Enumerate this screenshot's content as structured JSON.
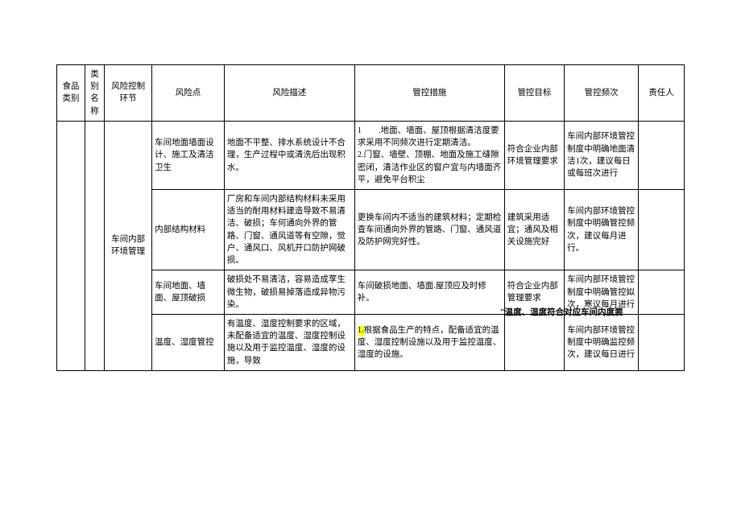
{
  "header": {
    "food_category": "食品类别",
    "category_name": "类别名称",
    "risk_control_link": "风险控制环节",
    "risk_point": "风险点",
    "risk_description": "风险描述",
    "control_measure": "管控措施",
    "control_goal": "管控目标",
    "control_frequency": "管控频次",
    "responsible": "责任人"
  },
  "link_name": "车间内部环境管理",
  "rows": [
    {
      "risk_point": "车间地面墙面设计、施工及清洁卫生",
      "risk_description": "地面不平整、排水系统设计不合理，生产过程中或清洗后出现积水。",
      "control_measure": "1　　.地面、墙面、屋顶根据清洁度要求采用不同频次进行定期清洁。\n2.门窗、墙壁、顶棚、地面及施工缝隙密闭，清洁作业区的窗户宜与内墙面齐平，避免平台积尘",
      "control_goal": "符合企业内部环境管理要求",
      "control_frequency": "车间内部环境管控制度中明确地面清洁1次，建议每日或每班次进行"
    },
    {
      "risk_point": "内部结构材料",
      "risk_description": "厂房和车间内部结构材料未采用适当的耐用材料建造导致不易清洁、破损；车何通向外界的管路、门窗、通风道等有空隙，觉户、通风口、风机开口防护网破损。",
      "control_measure": "更换车间内不适当的建筑材料；定期检查车间通向外界的管路、门窗、通风道及防护网完好性。",
      "control_goal": "建筑采用适宜；通风及相关设施完好",
      "control_frequency": "车间内部环境管控制度中明确管控频次，建议每月进行。"
    },
    {
      "risk_point": "车间地面、墙面、屋顶破损",
      "risk_description": "破损处不易清洁，容易造成莩生微生物，破损易掉落造成异物污染。",
      "control_measure": "车间破损地面、墙面.屋顶应及时修补。",
      "control_goal": "符合企业内部管理要求",
      "control_frequency": "车间内部环境管控制度中明确管控姒次，寒议每月进行"
    },
    {
      "risk_point": "温度、湿度管控",
      "risk_description": "有温度、湿度控制要求的区域，未配备适宜的温度、湿度控制设施以及用于监控温度、湿度的设施，导致",
      "control_measure_pre": "1.",
      "control_measure": "根据食品生产的特点，配备适宜的温度、湿度控制设施以及用于监控温度、湿度的设施。",
      "control_goal_overlap": "\"温度、湿度符合对应车间内度要",
      "control_frequency": "车间内部环境管控制度中明确监控频次，建议每日进行"
    }
  ]
}
